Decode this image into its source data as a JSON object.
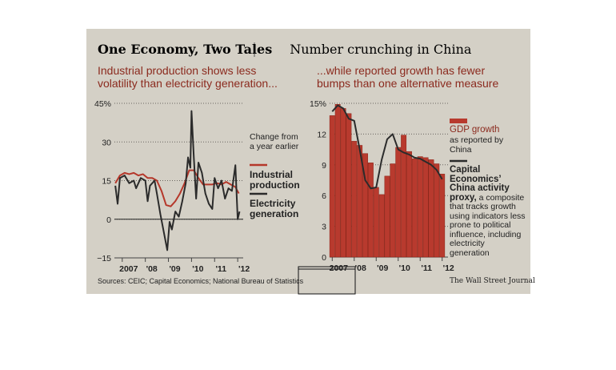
{
  "header": {
    "title": "One Economy, Two Tales",
    "subtitle": "Number crunching in China"
  },
  "chart_data": [
    {
      "type": "line",
      "subtitle": "Industrial production shows less volatility than electricity generation...",
      "annotation": "Change from a year earlier",
      "xlim": [
        2006.66,
        2012.1
      ],
      "xticks": [
        {
          "value": 2007,
          "label": "2007"
        },
        {
          "value": 2008,
          "label": "'08"
        },
        {
          "value": 2009,
          "label": "'09"
        },
        {
          "value": 2010,
          "label": "'10"
        },
        {
          "value": 2011,
          "label": "'11"
        },
        {
          "value": 2012,
          "label": "'12"
        }
      ],
      "ylim": [
        -15,
        45
      ],
      "yticks": [
        {
          "value": -15,
          "label": "−15"
        },
        0,
        15,
        30,
        {
          "value": 45,
          "label": "45%"
        }
      ],
      "grid": true,
      "series": [
        {
          "name": "Industrial production",
          "color": "#b5372a",
          "x": [
            2006.7,
            2006.9,
            2007.1,
            2007.3,
            2007.5,
            2007.7,
            2007.9,
            2008.1,
            2008.3,
            2008.5,
            2008.7,
            2008.9,
            2009.1,
            2009.3,
            2009.5,
            2009.7,
            2009.9,
            2010.1,
            2010.3,
            2010.5,
            2010.7,
            2010.9,
            2011.1,
            2011.3,
            2011.5,
            2011.7,
            2011.9,
            2012.05
          ],
          "values": [
            14,
            17,
            18,
            17.5,
            18,
            17,
            17.5,
            16,
            16,
            15,
            11,
            5.5,
            5,
            7,
            10,
            14,
            19,
            19,
            16,
            13.5,
            13.5,
            13.5,
            14,
            13.5,
            14.5,
            13.5,
            12.5,
            10
          ]
        },
        {
          "name": "Electricity generation",
          "color": "#2b2b2b",
          "x": [
            2006.7,
            2006.8,
            2006.9,
            2007.1,
            2007.3,
            2007.5,
            2007.6,
            2007.8,
            2008.0,
            2008.1,
            2008.2,
            2008.4,
            2008.5,
            2008.65,
            2008.8,
            2008.95,
            2009.05,
            2009.15,
            2009.3,
            2009.45,
            2009.6,
            2009.75,
            2009.85,
            2009.95,
            2010.0,
            2010.1,
            2010.2,
            2010.3,
            2010.45,
            2010.6,
            2010.75,
            2010.9,
            2011.0,
            2011.15,
            2011.3,
            2011.45,
            2011.6,
            2011.75,
            2011.9,
            2012.0,
            2012.08
          ],
          "values": [
            13,
            6,
            16,
            17,
            14,
            15,
            12,
            16,
            15,
            7,
            13,
            15,
            10,
            2,
            -5,
            -12,
            -1,
            -4,
            3,
            1,
            7,
            14,
            24,
            20,
            42,
            24,
            8,
            22,
            18,
            10,
            6,
            4,
            16,
            12,
            15,
            8,
            12,
            11,
            21,
            0,
            3
          ]
        }
      ]
    },
    {
      "type": "bar",
      "subtitle": "...while reported growth has fewer bumps than one alternative measure",
      "xlim": [
        2006.88,
        2012.12
      ],
      "xticks": [
        {
          "value": 2007,
          "label": "2007"
        },
        {
          "value": 2008,
          "label": "'08"
        },
        {
          "value": 2009,
          "label": "'09"
        },
        {
          "value": 2010,
          "label": "'10"
        },
        {
          "value": 2011,
          "label": "'11"
        },
        {
          "value": 2012,
          "label": "'12"
        }
      ],
      "ylim": [
        0,
        15
      ],
      "yticks": [
        0,
        3,
        6,
        9,
        12,
        {
          "value": 15,
          "label": "15%"
        }
      ],
      "grid": true,
      "series": [
        {
          "name": "GDP growth",
          "note": "as reported by China",
          "type": "bar",
          "color": "#b83a2e",
          "x": [
            2007,
            2007.25,
            2007.5,
            2007.75,
            2008,
            2008.25,
            2008.5,
            2008.75,
            2009,
            2009.25,
            2009.5,
            2009.75,
            2010,
            2010.25,
            2010.5,
            2010.75,
            2011,
            2011.25,
            2011.5,
            2011.75,
            2012
          ],
          "values": [
            13.8,
            14.9,
            14.5,
            14.0,
            11.3,
            10.9,
            10.1,
            9.2,
            6.8,
            6.1,
            7.9,
            9.1,
            10.7,
            11.9,
            10.3,
            9.6,
            9.8,
            9.7,
            9.5,
            9.1,
            8.1
          ]
        },
        {
          "name": "Capital Economics’ China activity proxy,",
          "note": "a composite that tracks growth using indicators less prone to political influence, including electricity generation",
          "type": "line",
          "color": "#2b2b2b",
          "x": [
            2007,
            2007.25,
            2007.5,
            2007.75,
            2008,
            2008.25,
            2008.5,
            2008.75,
            2009,
            2009.25,
            2009.5,
            2009.75,
            2010,
            2010.25,
            2010.5,
            2010.75,
            2011,
            2011.25,
            2011.5,
            2011.75,
            2012
          ],
          "values": [
            14.2,
            14.8,
            14.5,
            13.5,
            13.3,
            10.5,
            7.5,
            6.7,
            6.8,
            9.5,
            11.5,
            12.0,
            10.5,
            10.2,
            10.0,
            9.7,
            9.6,
            9.3,
            9.0,
            8.5,
            7.6
          ]
        }
      ]
    }
  ],
  "footer": {
    "source": "Sources: CEIC; Capital Economics; National Bureau of Statistics",
    "credit": "The Wall Street Journal"
  }
}
